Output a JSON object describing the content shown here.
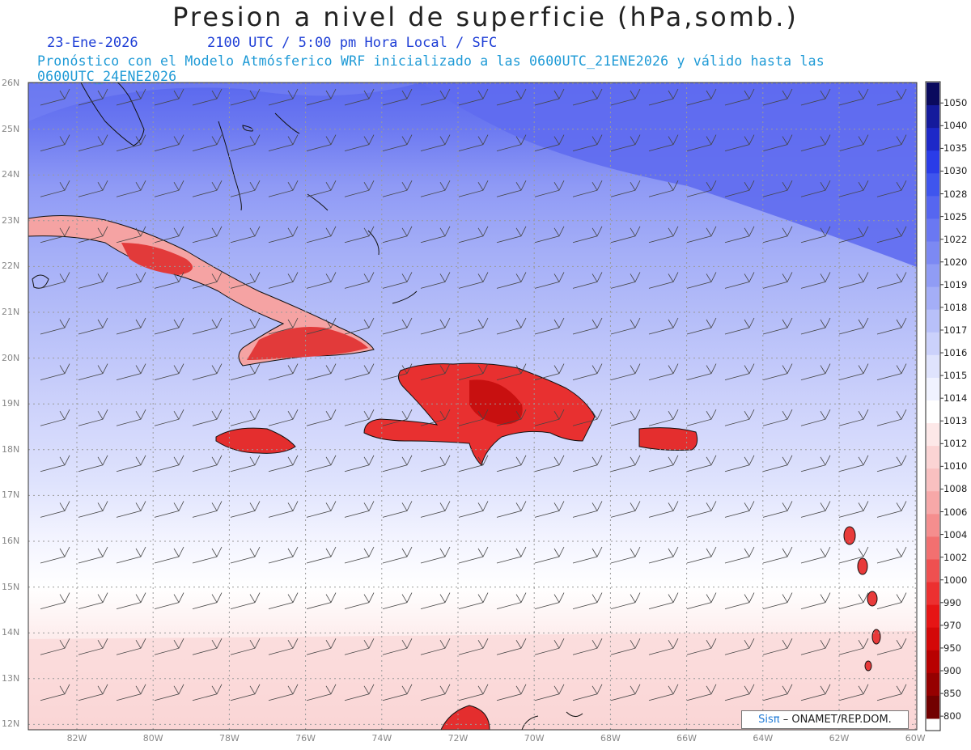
{
  "header": {
    "title": "Presion a nivel de superficie (hPa,somb.)",
    "date": "23-Ene-2026",
    "time": "2100 UTC / 5:00 pm Hora Local / SFC",
    "subtitle": "Pronóstico con el Modelo Atmósferico WRF inicializado a las 0600UTC_21ENE2026 y válido hasta las  0600UTC_24ENE2026"
  },
  "latitude_labels": [
    "26N",
    "25N",
    "24N",
    "23N",
    "22N",
    "21N",
    "20N",
    "19N",
    "18N",
    "17N",
    "16N",
    "15N",
    "14N",
    "13N",
    "12N"
  ],
  "longitude_labels": [
    "82W",
    "80W",
    "78W",
    "76W",
    "74W",
    "72W",
    "70W",
    "68W",
    "66W",
    "64W",
    "62W",
    "60W"
  ],
  "colorbar": {
    "labels": [
      "1050",
      "1040",
      "1035",
      "1030",
      "1028",
      "1025",
      "1022",
      "1020",
      "1019",
      "1018",
      "1017",
      "1016",
      "1015",
      "1014",
      "1013",
      "1012",
      "1010",
      "1008",
      "1006",
      "1004",
      "1002",
      "1000",
      "990",
      "970",
      "950",
      "900",
      "850",
      "800"
    ],
    "colors": [
      "#0a0a5e",
      "#141a9c",
      "#1d28c8",
      "#2a3ce8",
      "#3f55ee",
      "#5666f0",
      "#6a78f2",
      "#7c89f3",
      "#909cf5",
      "#a4aef7",
      "#b8c0f9",
      "#cbd1fb",
      "#dfe3fd",
      "#f0f2ff",
      "#ffffff",
      "#fde8e8",
      "#fbd4d4",
      "#f9c0c0",
      "#f7a8a8",
      "#f58e8e",
      "#f27070",
      "#ef5050",
      "#ec3030",
      "#e61515",
      "#d40808",
      "#b80000",
      "#960000",
      "#720000"
    ]
  },
  "credit": {
    "brand": "Sisπ",
    "text": "– ONAMET/REP.DOM."
  }
}
